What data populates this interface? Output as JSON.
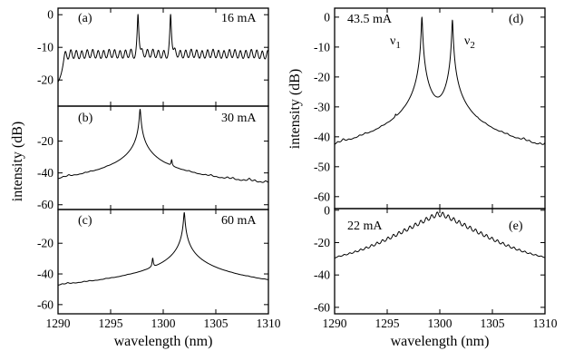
{
  "chart_data": [
    {
      "id": "a",
      "type": "line",
      "panel_label": "(a)",
      "current_label": "16 mA",
      "xlim": [
        1290,
        1310
      ],
      "ylim": [
        -28,
        2
      ],
      "x_ticks": [
        1290,
        1295,
        1300,
        1305,
        1310
      ],
      "y_ticks": [
        0,
        -10,
        -20
      ],
      "y_tick_labels": [
        "0",
        "-10",
        "-20"
      ],
      "mode_spacing_nm": 0.52,
      "mode_start_nm": 1290.7,
      "floor": -26,
      "peak_level": -12,
      "peak_spread": 0.3,
      "strong_modes": [
        {
          "x": 1297.6,
          "y": 0
        },
        {
          "x": 1300.7,
          "y": 0
        }
      ]
    },
    {
      "id": "b",
      "type": "line",
      "panel_label": "(b)",
      "current_label": "30 mA",
      "xlim": [
        1290,
        1310
      ],
      "ylim": [
        -63,
        2
      ],
      "x_ticks": [
        1290,
        1295,
        1300,
        1305,
        1310
      ],
      "y_ticks": [
        -20,
        -40,
        -60
      ],
      "y_tick_labels": [
        "-20",
        "-40",
        "-60"
      ],
      "mode_spacing_nm": 0.52,
      "mode_start_nm": 1290.5,
      "floor": -60,
      "peak_level": -50,
      "peak_spread": 3,
      "strong_modes": [
        {
          "x": 1297.8,
          "y": 0
        },
        {
          "x": 1300.8,
          "y": -34
        }
      ]
    },
    {
      "id": "c",
      "type": "line",
      "panel_label": "(c)",
      "current_label": "60 mA",
      "xlim": [
        1290,
        1310
      ],
      "ylim": [
        -66,
        2
      ],
      "x_ticks": [
        1290,
        1295,
        1300,
        1305,
        1310
      ],
      "y_ticks": [
        -20,
        -40,
        -60
      ],
      "y_tick_labels": [
        "-20",
        "-40",
        "-60"
      ],
      "mode_spacing_nm": 0.52,
      "mode_start_nm": 1290.4,
      "floor": -64,
      "peak_level": -55,
      "peak_spread": 2.5,
      "strong_modes": [
        {
          "x": 1299.0,
          "y": -31
        },
        {
          "x": 1302.0,
          "y": 0
        }
      ]
    },
    {
      "id": "d",
      "type": "line",
      "panel_label": "(d)",
      "current_label": "43.5 mA",
      "mode_labels": [
        "ν",
        "ν"
      ],
      "mode_label_subscripts": [
        "1",
        "2"
      ],
      "xlim": [
        1290,
        1310
      ],
      "ylim": [
        -64,
        3
      ],
      "x_ticks": [
        1290,
        1295,
        1300,
        1305,
        1310
      ],
      "y_ticks": [
        0,
        -10,
        -20,
        -30,
        -40,
        -50,
        -60
      ],
      "y_tick_labels": [
        "0",
        "-10",
        "-20",
        "-30",
        "-40",
        "-50",
        "-60"
      ],
      "mode_spacing_nm": 0.52,
      "mode_start_nm": 1290.3,
      "floor": -62,
      "peak_level": -50,
      "peak_spread": 3,
      "strong_modes": [
        {
          "x": 1295.8,
          "y": -40
        },
        {
          "x": 1298.3,
          "y": 0
        },
        {
          "x": 1301.2,
          "y": -1
        },
        {
          "x": 1303.6,
          "y": -47
        }
      ]
    },
    {
      "id": "e",
      "type": "line",
      "panel_label": "(e)",
      "current_label": "22 mA",
      "xlim": [
        1290,
        1310
      ],
      "ylim": [
        -64,
        1
      ],
      "x_ticks": [
        1290,
        1295,
        1300,
        1305,
        1310
      ],
      "x_tick_labels": [
        "1290",
        "1295",
        "1300",
        "1305",
        "1310"
      ],
      "y_ticks": [
        0,
        -20,
        -40,
        -60
      ],
      "y_tick_labels": [
        "0",
        "-20",
        "-40",
        "-60"
      ],
      "mode_spacing_nm": 0.52,
      "mode_start_nm": 1290.4,
      "floor": -62,
      "envelope_center_nm": 1300,
      "envelope_peak": -1,
      "envelope_slope_db_per_nm": 3.6,
      "envelope_min": -40,
      "strong_modes": []
    }
  ],
  "shared": {
    "x_tick_labels": [
      "1290",
      "1295",
      "1300",
      "1305",
      "1310"
    ],
    "xlabel_left": "wavelength (nm)",
    "xlabel_right": "wavelength (nm)",
    "ylabel_left": "intensity (dB)",
    "ylabel_right": "intensity (dB)"
  }
}
